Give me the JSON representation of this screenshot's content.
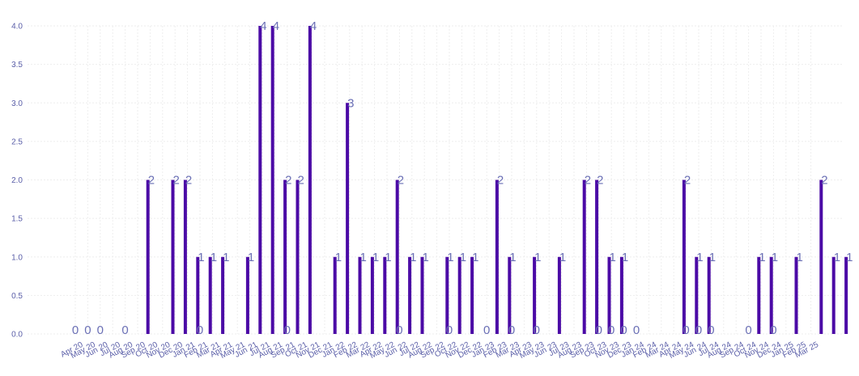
{
  "chart_data": {
    "type": "bar",
    "categories": [
      "Apr 20",
      "May 20",
      "Jun 20",
      "Jul 20",
      "Aug 20",
      "Sep 20",
      "Oct 20",
      "Nov 20",
      "Dec 20",
      "Jan 21",
      "Feb 21",
      "Mar 21",
      "Apr 21",
      "May 21",
      "Jun 21",
      "Jul 21",
      "Aug 21",
      "Sep 21",
      "Oct 21",
      "Nov 21",
      "Dec 21",
      "Jan 22",
      "Feb 22",
      "Mar 22",
      "Apr 22",
      "May 22",
      "Jun 22",
      "Jul 22",
      "Aug 22",
      "Sep 22",
      "Oct 22",
      "Nov 22",
      "Dec 22",
      "Jan 23",
      "Feb 23",
      "Mar 23",
      "Apr 23",
      "May 23",
      "Jun 23",
      "Jul 23",
      "Aug 23",
      "Sep 23",
      "Oct 23",
      "Nov 23",
      "Dec 23",
      "Jan 24",
      "Feb 24",
      "Mar 24",
      "Apr 24",
      "May 24",
      "Jun 24",
      "Jul 24",
      "Aug 24",
      "Sep 24",
      "Oct 24",
      "Nov 24",
      "Dec 24",
      "Jan 25",
      "Feb 25",
      "Mar 25"
    ],
    "values": [
      0,
      0,
      0,
      2,
      0,
      2,
      2,
      1,
      1,
      1,
      0,
      1,
      4,
      4,
      2,
      2,
      4,
      0,
      1,
      3,
      1,
      1,
      1,
      2,
      1,
      1,
      0,
      1,
      1,
      1,
      0,
      2,
      1,
      0,
      1,
      0,
      1,
      0,
      2,
      2,
      1,
      1,
      0,
      0,
      0,
      0,
      2,
      1,
      1,
      0,
      0,
      0,
      1,
      1,
      0,
      1,
      0,
      2,
      1,
      1
    ],
    "yticks": [
      "0.0",
      "0.5",
      "1.0",
      "1.5",
      "2.0",
      "2.5",
      "3.0",
      "3.5",
      "4.0"
    ],
    "ylim": [
      0,
      4
    ],
    "grid": true,
    "bar_color": "#4b0aa6",
    "label_color": "#6a6fb5",
    "title": "",
    "xlabel": "",
    "ylabel": ""
  }
}
